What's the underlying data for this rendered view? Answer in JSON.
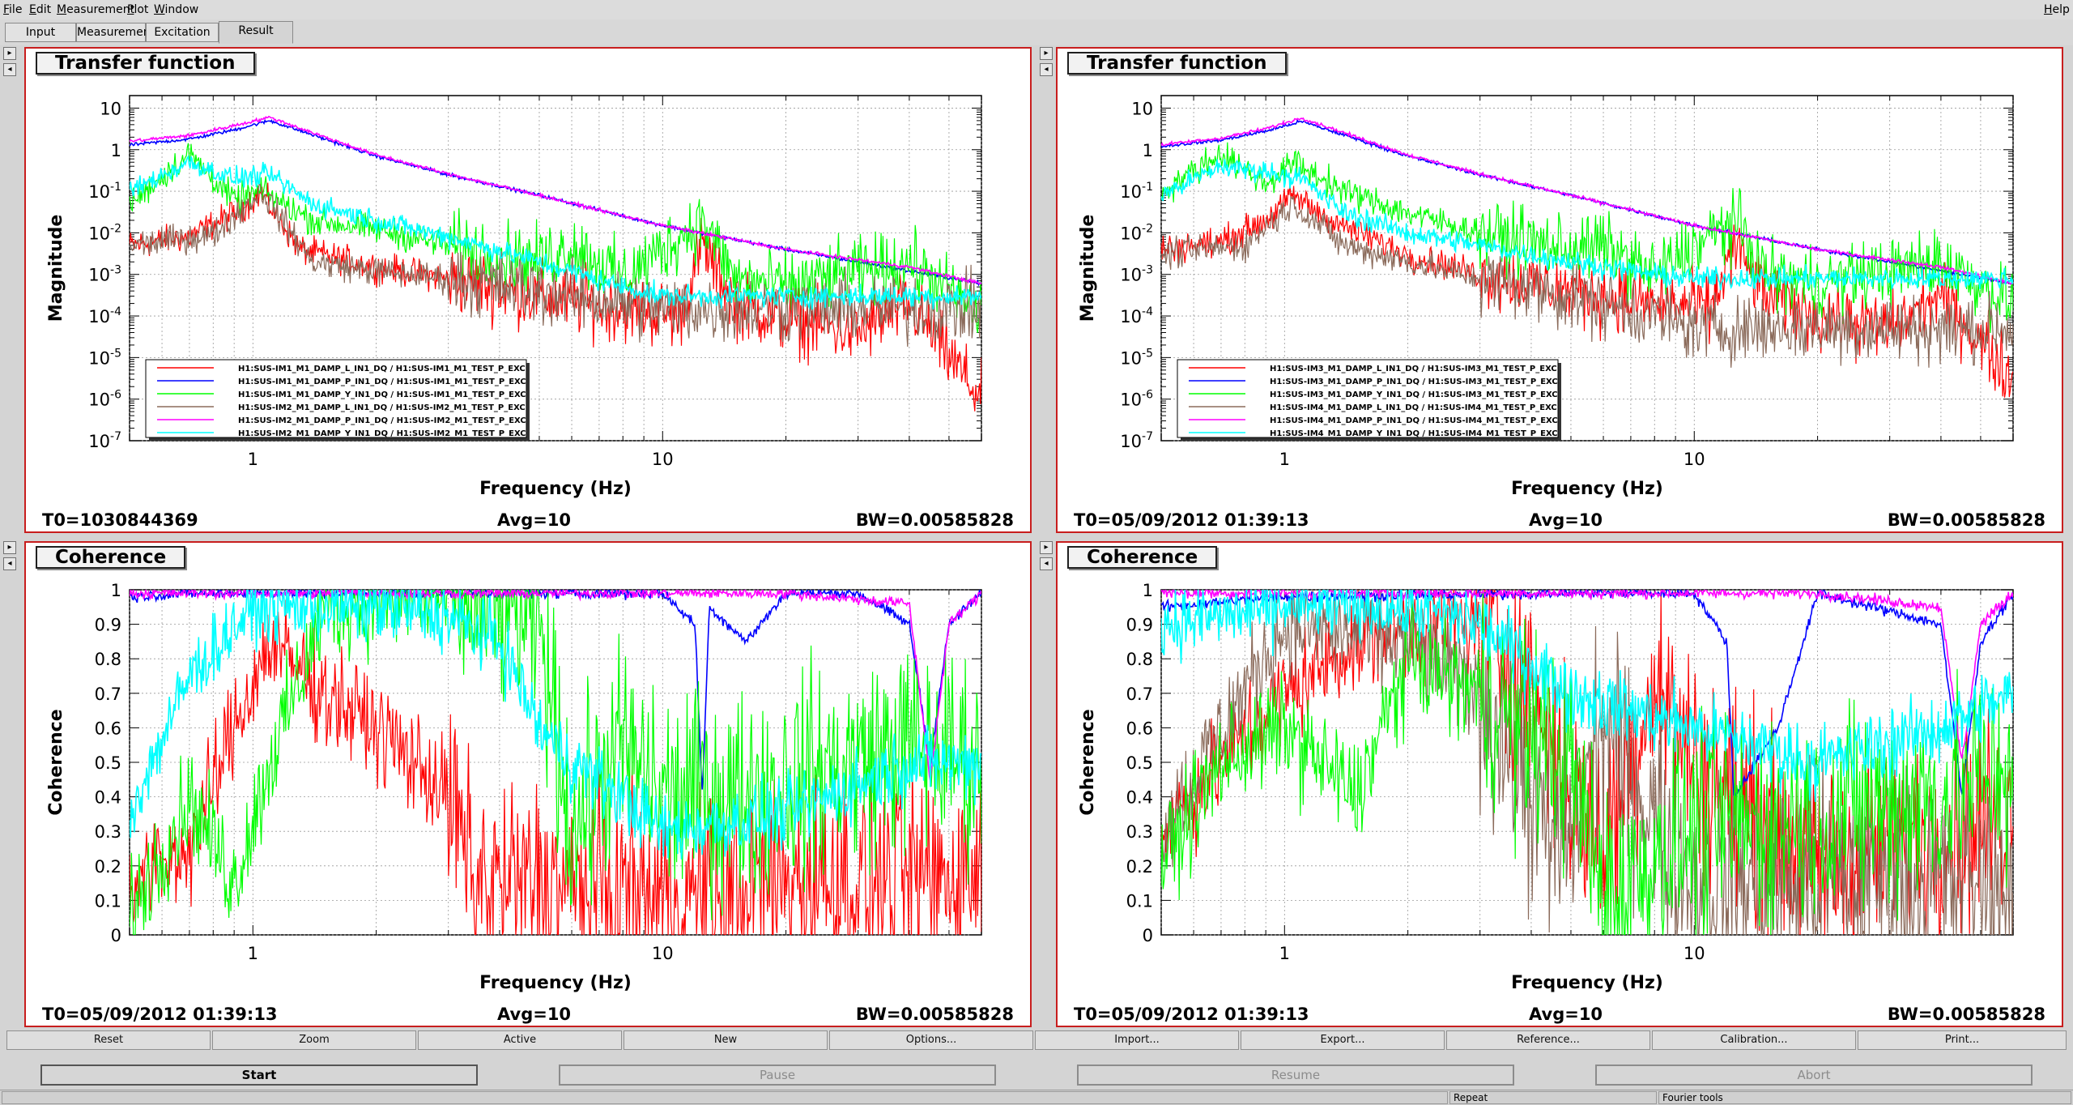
{
  "menubar": {
    "items": [
      "File",
      "Edit",
      "Measurement",
      "Plot",
      "Window"
    ],
    "help": "Help"
  },
  "tabs": [
    {
      "label": "Input",
      "active": false
    },
    {
      "label": "Measurement",
      "active": false
    },
    {
      "label": "Excitation",
      "active": false
    },
    {
      "label": "Result",
      "active": true
    }
  ],
  "colors": {
    "red": "#ff0000",
    "blue": "#0000ff",
    "green": "#00ff00",
    "brown": "#8b6b5b",
    "magenta": "#ff00ff",
    "cyan": "#00ffff",
    "pad_frame": "#c81e1e"
  },
  "pads": [
    {
      "title": "Transfer function",
      "t0": "T0=1030844369",
      "avg": "Avg=10",
      "bw": "BW=0.00585828"
    },
    {
      "title": "Transfer function",
      "t0": "T0=05/09/2012 01:39:13",
      "avg": "Avg=10",
      "bw": "BW=0.00585828"
    },
    {
      "title": "Coherence",
      "t0": "T0=05/09/2012 01:39:13",
      "avg": "Avg=10",
      "bw": "BW=0.00585828"
    },
    {
      "title": "Coherence",
      "t0": "T0=05/09/2012 01:39:13",
      "avg": "Avg=10",
      "bw": "BW=0.00585828"
    }
  ],
  "chart_data": [
    {
      "type": "line",
      "title": "Transfer function",
      "xlabel": "Frequency (Hz)",
      "ylabel": "Magnitude",
      "xscale": "log",
      "yscale": "log",
      "xlim": [
        0.5,
        60
      ],
      "ylim": [
        1e-07,
        20
      ],
      "grid": true,
      "legend_position": "bottom-left",
      "x_tick_labels": [
        "1",
        "10"
      ],
      "y_tick_labels": [
        "10",
        "1",
        "10^-1",
        "10^-2",
        "10^-3",
        "10^-4",
        "10^-5",
        "10^-6",
        "10^-7"
      ],
      "series": [
        {
          "name": "H1:SUS-IM1_M1_DAMP_L_IN1_DQ / H1:SUS-IM1_M1_TEST_P_EXC",
          "color": "red",
          "x": [
            0.5,
            0.7,
            0.9,
            1.05,
            1.3,
            2,
            3,
            5,
            8,
            11,
            12.5,
            15,
            20,
            30,
            40,
            60
          ],
          "y": [
            0.005,
            0.008,
            0.03,
            0.09,
            0.004,
            0.0015,
            0.0008,
            0.0003,
            0.00015,
            0.0001,
            0.005,
            0.0002,
            8e-05,
            4e-05,
            0.0002,
            1e-06
          ]
        },
        {
          "name": "H1:SUS-IM1_M1_DAMP_P_IN1_DQ / H1:SUS-IM1_M1_TEST_P_EXC",
          "color": "blue",
          "x": [
            0.5,
            0.7,
            0.9,
            1.1,
            1.5,
            2,
            3,
            5,
            10,
            20,
            30,
            60
          ],
          "y": [
            1.3,
            1.8,
            3,
            5,
            1.8,
            0.7,
            0.25,
            0.08,
            0.015,
            0.004,
            0.002,
            0.0006
          ]
        },
        {
          "name": "H1:SUS-IM1_M1_DAMP_Y_IN1_DQ / H1:SUS-IM1_M1_TEST_P_EXC",
          "color": "green",
          "x": [
            0.5,
            0.7,
            0.9,
            1.05,
            1.4,
            2,
            3,
            5,
            6,
            8,
            12.5,
            15,
            20,
            40,
            60
          ],
          "y": [
            0.05,
            0.8,
            0.06,
            0.1,
            0.02,
            0.012,
            0.005,
            0.002,
            0.005,
            0.0008,
            0.02,
            0.0008,
            0.0005,
            0.002,
            0.0001
          ]
        },
        {
          "name": "H1:SUS-IM2_M1_DAMP_L_IN1_DQ / H1:SUS-IM2_M1_TEST_P_EXC",
          "color": "brown",
          "x": [
            0.5,
            0.8,
            1.05,
            1.4,
            2,
            3,
            5,
            8,
            10
          ],
          "y": [
            0.005,
            0.009,
            0.1,
            0.002,
            0.0012,
            0.0008,
            0.0004,
            0.0002,
            0.00015
          ]
        },
        {
          "name": "H1:SUS-IM2_M1_DAMP_P_IN1_DQ / H1:SUS-IM2_M1_TEST_P_EXC",
          "color": "magenta",
          "x": [
            0.5,
            0.7,
            0.9,
            1.1,
            1.5,
            2,
            3,
            5,
            10,
            20,
            40,
            60
          ],
          "y": [
            1.6,
            2.2,
            3.8,
            6,
            2,
            0.75,
            0.26,
            0.08,
            0.015,
            0.004,
            0.0015,
            0.0006
          ]
        },
        {
          "name": "H1:SUS-IM2_M1_DAMP_Y_IN1_DQ / H1:SUS-IM2_M1_TEST_P_EXC",
          "color": "cyan",
          "x": [
            0.5,
            0.7,
            0.9,
            1.1,
            1.4,
            2,
            3,
            5,
            8,
            10
          ],
          "y": [
            0.1,
            0.5,
            0.2,
            0.25,
            0.05,
            0.02,
            0.008,
            0.002,
            0.0005,
            0.0003
          ]
        }
      ]
    },
    {
      "type": "line",
      "title": "Transfer function",
      "xlabel": "Frequency (Hz)",
      "ylabel": "Magnitude",
      "xscale": "log",
      "yscale": "log",
      "xlim": [
        0.5,
        60
      ],
      "ylim": [
        1e-07,
        20
      ],
      "grid": true,
      "legend_position": "bottom-left",
      "x_tick_labels": [
        "1",
        "10"
      ],
      "y_tick_labels": [
        "10",
        "1",
        "10^-1",
        "10^-2",
        "10^-3",
        "10^-4",
        "10^-5",
        "10^-6",
        "10^-7"
      ],
      "series": [
        {
          "name": "H1:SUS-IM3_M1_DAMP_L_IN1_DQ / H1:SUS-IM3_M1_TEST_P_EXC",
          "color": "red",
          "x": [
            0.5,
            0.7,
            0.9,
            1.05,
            1.3,
            2,
            3,
            5,
            8,
            11,
            12.5,
            15,
            20,
            30,
            40,
            60
          ],
          "y": [
            0.004,
            0.006,
            0.02,
            0.08,
            0.02,
            0.003,
            0.001,
            0.0004,
            0.0002,
            0.00015,
            0.005,
            0.0003,
            0.0001,
            5e-05,
            0.0003,
            3e-06
          ]
        },
        {
          "name": "H1:SUS-IM3_M1_DAMP_P_IN1_DQ / H1:SUS-IM3_M1_TEST_P_EXC",
          "color": "blue",
          "x": [
            0.5,
            0.7,
            0.9,
            1.1,
            1.5,
            2,
            3,
            5,
            10,
            20,
            30,
            60
          ],
          "y": [
            1.2,
            1.7,
            2.8,
            4.8,
            1.8,
            0.7,
            0.25,
            0.08,
            0.015,
            0.004,
            0.002,
            0.0006
          ]
        },
        {
          "name": "H1:SUS-IM3_M1_DAMP_Y_IN1_DQ / H1:SUS-IM3_M1_TEST_P_EXC",
          "color": "green",
          "x": [
            0.5,
            0.7,
            0.9,
            1.05,
            1.4,
            2,
            3,
            5,
            6,
            8,
            12.5,
            15,
            20,
            40,
            60
          ],
          "y": [
            0.1,
            0.8,
            0.15,
            0.5,
            0.1,
            0.03,
            0.01,
            0.004,
            0.005,
            0.001,
            0.02,
            0.001,
            0.0006,
            0.002,
            0.0002
          ]
        },
        {
          "name": "H1:SUS-IM4_M1_DAMP_L_IN1_DQ / H1:SUS-IM4_M1_TEST_P_EXC",
          "color": "brown",
          "x": [
            0.5,
            0.8,
            1.05,
            1.4,
            2,
            3,
            5,
            8,
            10
          ],
          "y": [
            0.003,
            0.005,
            0.05,
            0.005,
            0.002,
            0.0008,
            0.0003,
            0.0001,
            5e-05
          ]
        },
        {
          "name": "H1:SUS-IM4_M1_DAMP_P_IN1_DQ / H1:SUS-IM4_M1_TEST_P_EXC",
          "color": "magenta",
          "x": [
            0.5,
            0.7,
            0.9,
            1.1,
            1.5,
            2,
            3,
            5,
            10,
            20,
            40,
            60
          ],
          "y": [
            1.3,
            1.9,
            3.2,
            5.8,
            2,
            0.75,
            0.26,
            0.08,
            0.015,
            0.004,
            0.0015,
            0.0006
          ]
        },
        {
          "name": "H1:SUS-IM4_M1_DAMP_Y_IN1_DQ / H1:SUS-IM4_M1_TEST_P_EXC",
          "color": "cyan",
          "x": [
            0.5,
            0.7,
            0.9,
            1.1,
            1.4,
            2,
            3,
            5,
            8,
            10
          ],
          "y": [
            0.08,
            0.4,
            0.3,
            0.2,
            0.03,
            0.01,
            0.005,
            0.002,
            0.001,
            0.0008
          ]
        }
      ]
    },
    {
      "type": "line",
      "title": "Coherence",
      "xlabel": "Frequency (Hz)",
      "ylabel": "Coherence",
      "xscale": "log",
      "yscale": "linear",
      "xlim": [
        0.5,
        60
      ],
      "ylim": [
        0,
        1
      ],
      "grid": true,
      "x_tick_labels": [
        "1",
        "10"
      ],
      "y_tick_labels": [
        "1",
        "0.9",
        "0.8",
        "0.7",
        "0.6",
        "0.5",
        "0.4",
        "0.3",
        "0.2",
        "0.1",
        "0"
      ],
      "series": [
        {
          "color": "red",
          "x": [
            0.5,
            0.7,
            0.9,
            1.1,
            1.5,
            2,
            2.5,
            3,
            3.5,
            5,
            10,
            20,
            40,
            60
          ],
          "y": [
            0.15,
            0.25,
            0.6,
            0.85,
            0.7,
            0.6,
            0.5,
            0.4,
            0.15,
            0.15,
            0.1,
            0.15,
            0.15,
            0.2
          ]
        },
        {
          "color": "blue",
          "x": [
            0.5,
            0.7,
            1,
            2,
            5,
            10,
            12,
            12.5,
            13,
            16,
            20,
            30,
            40,
            45,
            50,
            60
          ],
          "y": [
            0.98,
            0.99,
            0.99,
            0.99,
            0.99,
            0.99,
            0.9,
            0.4,
            0.95,
            0.85,
            0.99,
            0.99,
            0.9,
            0.5,
            0.9,
            0.99
          ]
        },
        {
          "color": "green",
          "x": [
            0.5,
            0.7,
            0.9,
            1.1,
            1.5,
            2,
            3,
            4,
            5,
            6,
            8,
            10,
            15,
            20,
            30,
            40,
            60
          ],
          "y": [
            0.05,
            0.4,
            0.15,
            0.5,
            0.95,
            0.97,
            0.98,
            0.96,
            0.9,
            0.3,
            0.55,
            0.4,
            0.4,
            0.45,
            0.5,
            0.55,
            0.5
          ]
        },
        {
          "color": "magenta",
          "x": [
            0.5,
            1,
            5,
            10,
            20,
            40,
            45,
            50,
            60
          ],
          "y": [
            0.99,
            0.99,
            0.99,
            0.99,
            0.99,
            0.96,
            0.45,
            0.9,
            0.99
          ]
        },
        {
          "color": "cyan",
          "x": [
            0.5,
            0.7,
            1,
            2,
            3,
            4,
            5,
            6,
            8,
            10,
            20,
            40,
            60
          ],
          "y": [
            0.35,
            0.75,
            0.95,
            0.95,
            0.92,
            0.85,
            0.6,
            0.5,
            0.4,
            0.3,
            0.35,
            0.5,
            0.5
          ]
        }
      ]
    },
    {
      "type": "line",
      "title": "Coherence",
      "xlabel": "Frequency (Hz)",
      "ylabel": "Coherence",
      "xscale": "log",
      "yscale": "linear",
      "xlim": [
        0.5,
        60
      ],
      "ylim": [
        0,
        1
      ],
      "grid": true,
      "x_tick_labels": [
        "1",
        "10"
      ],
      "y_tick_labels": [
        "1",
        "0.9",
        "0.8",
        "0.7",
        "0.6",
        "0.5",
        "0.4",
        "0.3",
        "0.2",
        "0.1",
        "0"
      ],
      "series": [
        {
          "color": "red",
          "x": [
            0.5,
            0.7,
            1,
            1.5,
            2,
            3,
            4,
            5,
            6,
            8,
            10,
            20,
            40,
            60
          ],
          "y": [
            0.3,
            0.5,
            0.7,
            0.85,
            0.9,
            0.9,
            0.7,
            0.4,
            0.25,
            0.75,
            0.5,
            0.2,
            0.3,
            0.35
          ]
        },
        {
          "color": "brown",
          "x": [
            0.5,
            1,
            2,
            3,
            4,
            4.5,
            5,
            6,
            10
          ],
          "y": [
            0.3,
            0.9,
            0.85,
            0.7,
            0.4,
            0.25,
            0.3,
            0.6,
            0.15
          ]
        },
        {
          "color": "blue",
          "x": [
            0.5,
            1,
            5,
            10,
            12,
            12.5,
            16,
            20,
            40,
            45,
            50,
            60
          ],
          "y": [
            0.95,
            0.98,
            0.99,
            0.99,
            0.85,
            0.4,
            0.6,
            0.99,
            0.9,
            0.4,
            0.85,
            0.99
          ]
        },
        {
          "color": "green",
          "x": [
            0.5,
            0.7,
            1,
            1.5,
            2,
            3,
            5,
            6,
            10,
            20,
            40,
            60
          ],
          "y": [
            0.2,
            0.5,
            0.6,
            0.4,
            0.8,
            0.7,
            0.5,
            0.1,
            0.3,
            0.35,
            0.4,
            0.5
          ]
        },
        {
          "color": "magenta",
          "x": [
            0.5,
            1,
            10,
            20,
            40,
            45,
            50,
            60
          ],
          "y": [
            0.99,
            0.99,
            0.99,
            0.99,
            0.95,
            0.5,
            0.9,
            0.99
          ]
        },
        {
          "color": "cyan",
          "x": [
            0.5,
            1,
            2,
            3,
            5,
            10,
            20,
            40,
            60
          ],
          "y": [
            0.9,
            0.95,
            0.95,
            0.9,
            0.7,
            0.6,
            0.5,
            0.6,
            0.7
          ]
        }
      ]
    }
  ],
  "toolbar": [
    "Reset",
    "Zoom",
    "Active",
    "New",
    "Options...",
    "Import...",
    "Export...",
    "Reference...",
    "Calibration...",
    "Print..."
  ],
  "controls": [
    {
      "label": "Start",
      "enabled": true
    },
    {
      "label": "Pause",
      "enabled": false
    },
    {
      "label": "Resume",
      "enabled": false
    },
    {
      "label": "Abort",
      "enabled": false
    }
  ],
  "statusbar": {
    "repeat": "Repeat",
    "fourier": "Fourier tools"
  }
}
